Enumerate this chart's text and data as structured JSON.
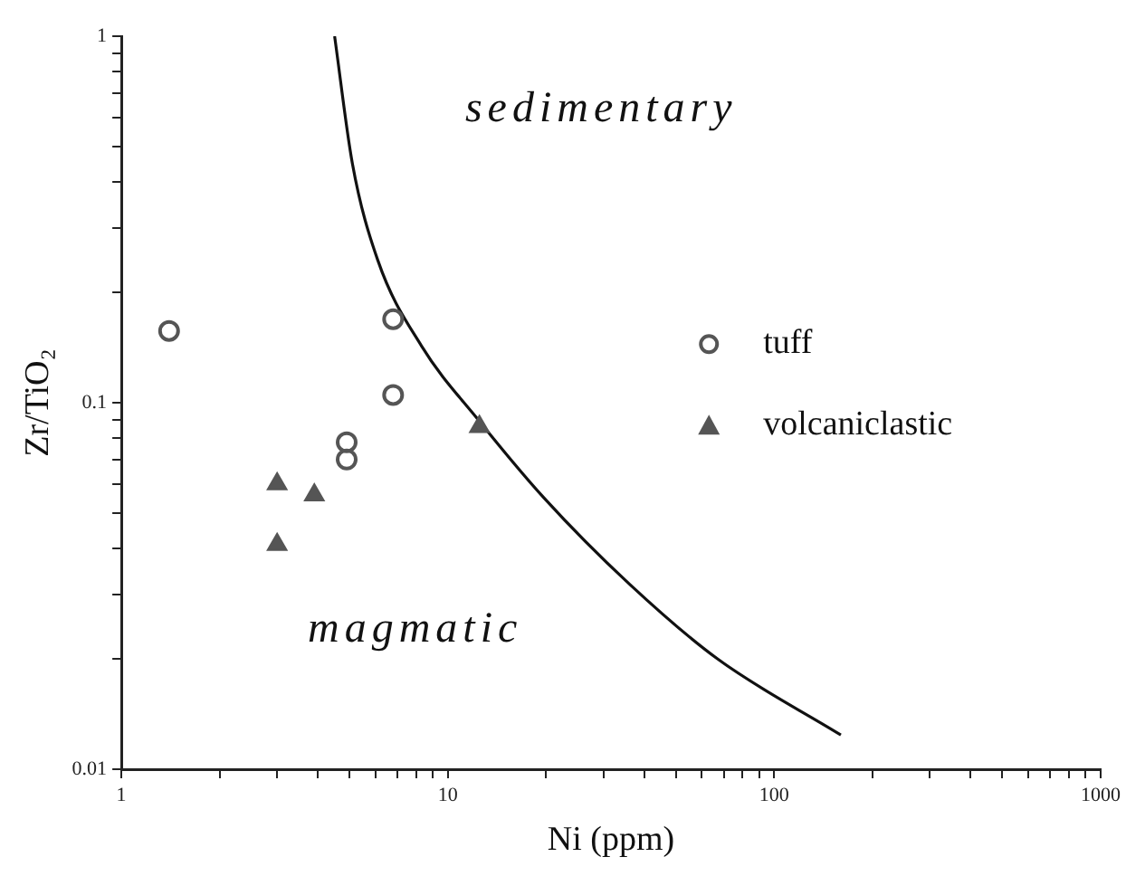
{
  "chart_data": {
    "type": "scatter",
    "xlabel": "Ni (ppm)",
    "ylabel": "Zr/TiO₂",
    "log": "xy",
    "xlim": [
      1,
      1000
    ],
    "ylim": [
      0.01,
      1
    ],
    "xticks": [
      1,
      {
        "value": 2,
        "label": null
      },
      {
        "value": 3,
        "label": null
      },
      {
        "value": 4,
        "label": null
      },
      {
        "value": 5,
        "label": null
      },
      {
        "value": 6,
        "label": null
      },
      {
        "value": 7,
        "label": null
      },
      {
        "value": 8,
        "label": null
      },
      {
        "value": 9,
        "label": null
      },
      10,
      {
        "value": 20,
        "label": null
      },
      {
        "value": 30,
        "label": null
      },
      {
        "value": 40,
        "label": null
      },
      {
        "value": 50,
        "label": null
      },
      {
        "value": 60,
        "label": null
      },
      {
        "value": 70,
        "label": null
      },
      {
        "value": 80,
        "label": null
      },
      {
        "value": 90,
        "label": null
      },
      100,
      {
        "value": 200,
        "label": null
      },
      {
        "value": 300,
        "label": null
      },
      {
        "value": 400,
        "label": null
      },
      {
        "value": 500,
        "label": null
      },
      {
        "value": 600,
        "label": null
      },
      {
        "value": 700,
        "label": null
      },
      {
        "value": 800,
        "label": null
      },
      {
        "value": 900,
        "label": null
      },
      1000
    ],
    "yticks": [
      0.01,
      {
        "value": 0.02,
        "label": null
      },
      {
        "value": 0.03,
        "label": null
      },
      {
        "value": 0.04,
        "label": null
      },
      {
        "value": 0.05,
        "label": null
      },
      {
        "value": 0.06,
        "label": null
      },
      {
        "value": 0.07,
        "label": null
      },
      {
        "value": 0.08,
        "label": null
      },
      {
        "value": 0.09,
        "label": null
      },
      0.1,
      {
        "value": 0.2,
        "label": null
      },
      {
        "value": 0.3,
        "label": null
      },
      {
        "value": 0.4,
        "label": null
      },
      {
        "value": 0.5,
        "label": null
      },
      {
        "value": 0.6,
        "label": null
      },
      {
        "value": 0.7,
        "label": null
      },
      {
        "value": 0.8,
        "label": null
      },
      {
        "value": 0.9,
        "label": null
      },
      1
    ],
    "grid": false,
    "legend": "right",
    "series": [
      {
        "name": "tuff",
        "marker": "circle",
        "color": "#555555",
        "x": [
          1.4,
          6.8,
          6.8,
          4.9,
          4.9
        ],
        "values": [
          0.157,
          0.169,
          0.105,
          0.078,
          0.07
        ]
      },
      {
        "name": "volcaniclastic",
        "marker": "triangle",
        "color": "#555555",
        "x": [
          3,
          3.9,
          3,
          12.5
        ],
        "values": [
          0.06,
          0.056,
          0.041,
          0.086
        ]
      },
      {
        "type": "line",
        "marker": "none",
        "line_style": "solid",
        "color": "#111111",
        "x": [
          4.5,
          5.1,
          6.1,
          8.3,
          12.5,
          19.7,
          36,
          67,
          160
        ],
        "values": [
          1,
          0.45,
          0.245,
          0.143,
          0.089,
          0.055,
          0.032,
          0.02,
          0.0124
        ]
      }
    ],
    "annotations": [
      "sedimentary",
      "magmatic"
    ]
  }
}
